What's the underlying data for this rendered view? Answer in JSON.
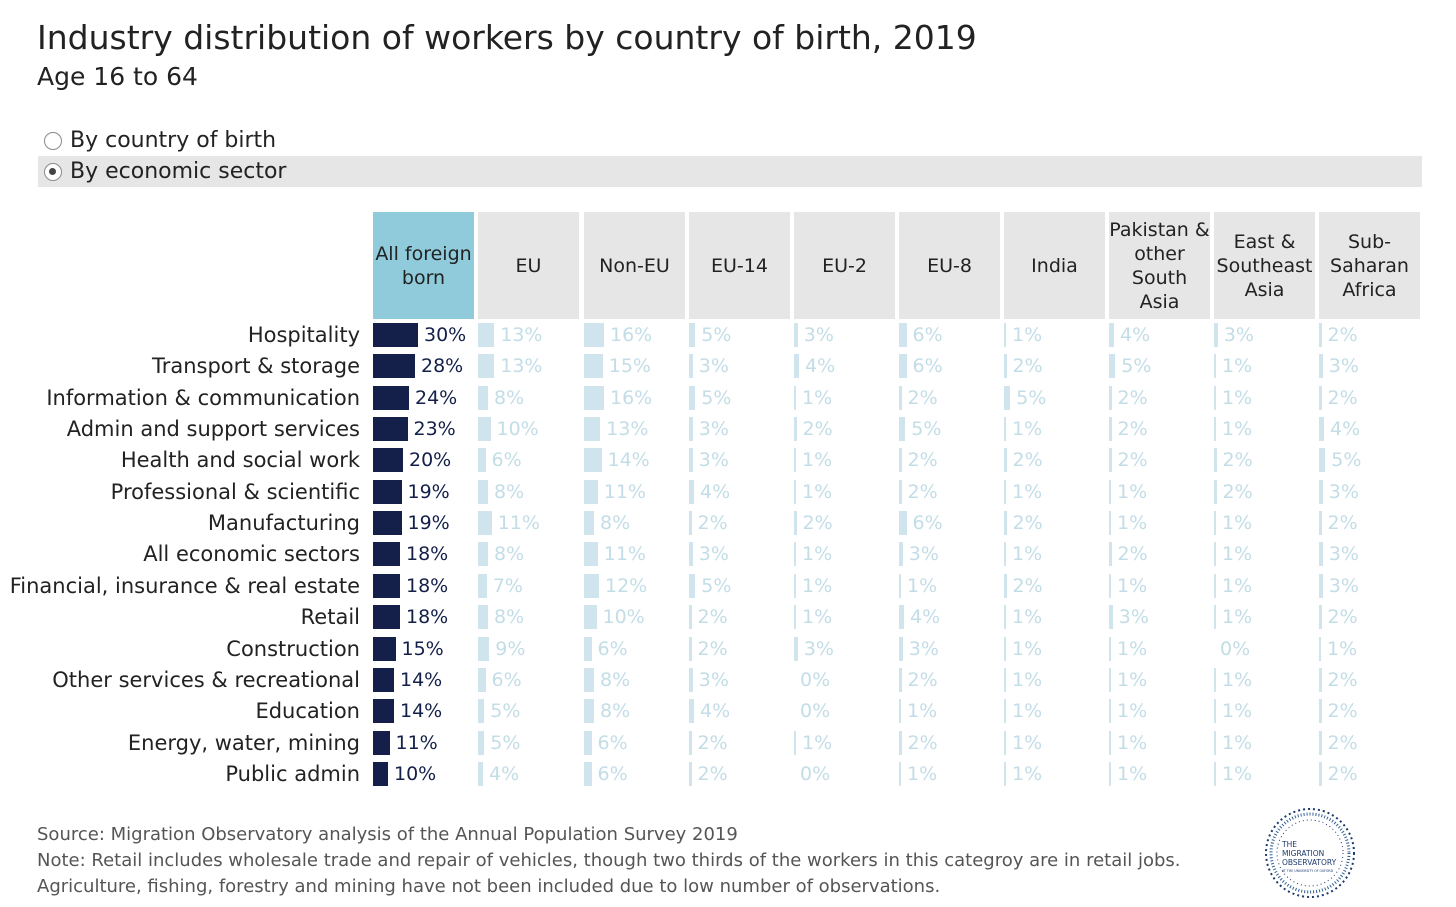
{
  "header": {
    "title": "Industry distribution of workers by country of birth, 2019",
    "subtitle": "Age 16 to 64"
  },
  "view_options": [
    {
      "label": "By country of birth",
      "selected": false
    },
    {
      "label": "By economic sector",
      "selected": true
    }
  ],
  "colors": {
    "primary_bar": "#14204a",
    "secondary_bar": "#cfe4ec",
    "secondary_text": "#c3dde7",
    "selected_header": "#8fcbdb",
    "header_bg": "#e6e6e6"
  },
  "chart_data": {
    "type": "table",
    "columns": [
      "All foreign born",
      "EU",
      "Non-EU",
      "EU-14",
      "EU-2",
      "EU-8",
      "India",
      "Pakistan & other South Asia",
      "East & Southeast Asia",
      "Sub-Saharan Africa"
    ],
    "highlighted_column": "All foreign born",
    "rows": [
      {
        "label": "Hospitality",
        "values": [
          30,
          13,
          16,
          5,
          3,
          6,
          1,
          4,
          3,
          2
        ]
      },
      {
        "label": "Transport & storage",
        "values": [
          28,
          13,
          15,
          3,
          4,
          6,
          2,
          5,
          1,
          3
        ]
      },
      {
        "label": "Information & communication",
        "values": [
          24,
          8,
          16,
          5,
          1,
          2,
          5,
          2,
          1,
          2
        ]
      },
      {
        "label": "Admin and support services",
        "values": [
          23,
          10,
          13,
          3,
          2,
          5,
          1,
          2,
          1,
          4
        ]
      },
      {
        "label": "Health and social work",
        "values": [
          20,
          6,
          14,
          3,
          1,
          2,
          2,
          2,
          2,
          5
        ]
      },
      {
        "label": "Professional & scientific",
        "values": [
          19,
          8,
          11,
          4,
          1,
          2,
          1,
          1,
          2,
          3
        ]
      },
      {
        "label": "Manufacturing",
        "values": [
          19,
          11,
          8,
          2,
          2,
          6,
          2,
          1,
          1,
          2
        ]
      },
      {
        "label": "All economic sectors",
        "values": [
          18,
          8,
          11,
          3,
          1,
          3,
          1,
          2,
          1,
          3
        ]
      },
      {
        "label": "Financial, insurance & real estate",
        "values": [
          18,
          7,
          12,
          5,
          1,
          1,
          2,
          1,
          1,
          3
        ]
      },
      {
        "label": "Retail",
        "values": [
          18,
          8,
          10,
          2,
          1,
          4,
          1,
          3,
          1,
          2
        ]
      },
      {
        "label": "Construction",
        "values": [
          15,
          9,
          6,
          2,
          3,
          3,
          1,
          1,
          0,
          1
        ]
      },
      {
        "label": "Other services & recreational",
        "values": [
          14,
          6,
          8,
          3,
          0,
          2,
          1,
          1,
          1,
          2
        ]
      },
      {
        "label": "Education",
        "values": [
          14,
          5,
          8,
          4,
          0,
          1,
          1,
          1,
          1,
          2
        ]
      },
      {
        "label": "Energy, water, mining",
        "values": [
          11,
          5,
          6,
          2,
          1,
          2,
          1,
          1,
          1,
          2
        ]
      },
      {
        "label": "Public admin",
        "values": [
          10,
          4,
          6,
          2,
          0,
          1,
          1,
          1,
          1,
          2
        ]
      }
    ],
    "unit": "%"
  },
  "footer": {
    "source": "Source: Migration Observatory analysis of the Annual Population Survey 2019",
    "note": "Note: Retail includes wholesale trade and repair of vehicles, though two thirds of the workers in this categroy are in retail jobs. Agriculture, fishing, forestry and mining have not been included due to low number of observations."
  },
  "logo": {
    "line1": "THE",
    "line2": "MIGRATION",
    "line3": "OBSERVATORY",
    "line4": "AT THE UNIVERSITY OF OXFORD"
  }
}
